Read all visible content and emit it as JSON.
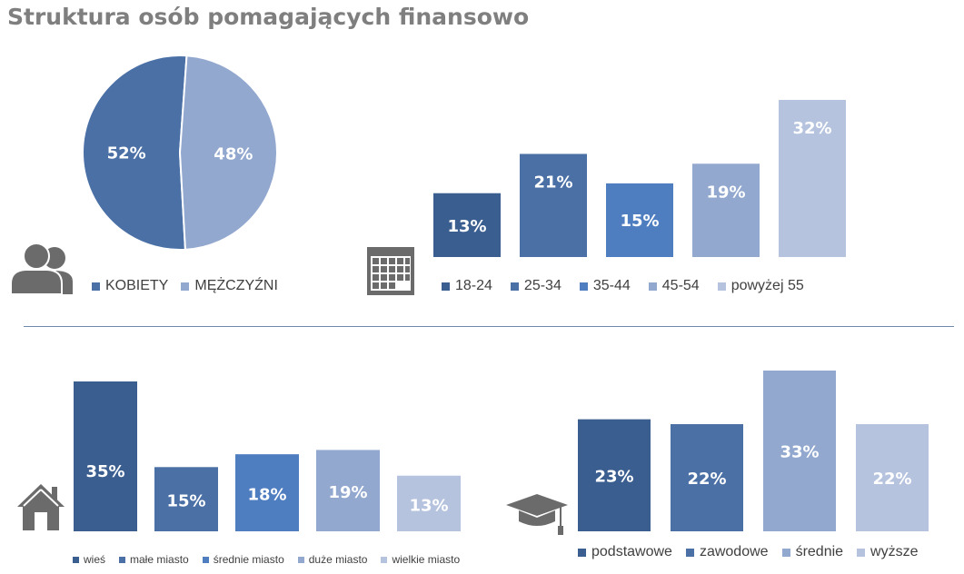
{
  "title": "Struktura osób pomagających finansowo",
  "colors": {
    "c1": "#3b5e90",
    "c2": "#4a70a6",
    "c3": "#4f7ec0",
    "c4": "#92a8cf",
    "c5": "#b6c3de",
    "divider": "#6f89ad",
    "title": "#7f7f7f",
    "icon": "#6b6b6b"
  },
  "icons": {
    "gender": "people-icon",
    "age": "calendar-icon",
    "place": "house-icon",
    "education": "graduation-cap-icon"
  },
  "chart_data": [
    {
      "id": "gender",
      "type": "pie",
      "categories": [
        "KOBIETY",
        "MĘŻCZYŹNI"
      ],
      "values": [
        52,
        48
      ],
      "labels": [
        "52%",
        "48%"
      ],
      "legend": "bottom"
    },
    {
      "id": "age",
      "type": "bar",
      "categories": [
        "18-24",
        "25-34",
        "35-44",
        "45-54",
        "powyżej 55"
      ],
      "values": [
        13,
        21,
        15,
        19,
        32
      ],
      "labels": [
        "13%",
        "21%",
        "15%",
        "19%",
        "32%"
      ],
      "legend": "bottom",
      "grid": false
    },
    {
      "id": "place",
      "type": "bar",
      "categories": [
        "wieś",
        "małe miasto",
        "średnie miasto",
        "duże miasto",
        "wielkie miasto"
      ],
      "values": [
        35,
        15,
        18,
        19,
        13
      ],
      "labels": [
        "35%",
        "15%",
        "18%",
        "19%",
        "13%"
      ],
      "legend": "bottom",
      "grid": false
    },
    {
      "id": "education",
      "type": "bar",
      "categories": [
        "podstawowe",
        "zawodowe",
        "średnie",
        "wyższe"
      ],
      "values": [
        23,
        22,
        33,
        22
      ],
      "labels": [
        "23%",
        "22%",
        "33%",
        "22%"
      ],
      "legend": "bottom",
      "grid": false
    }
  ]
}
